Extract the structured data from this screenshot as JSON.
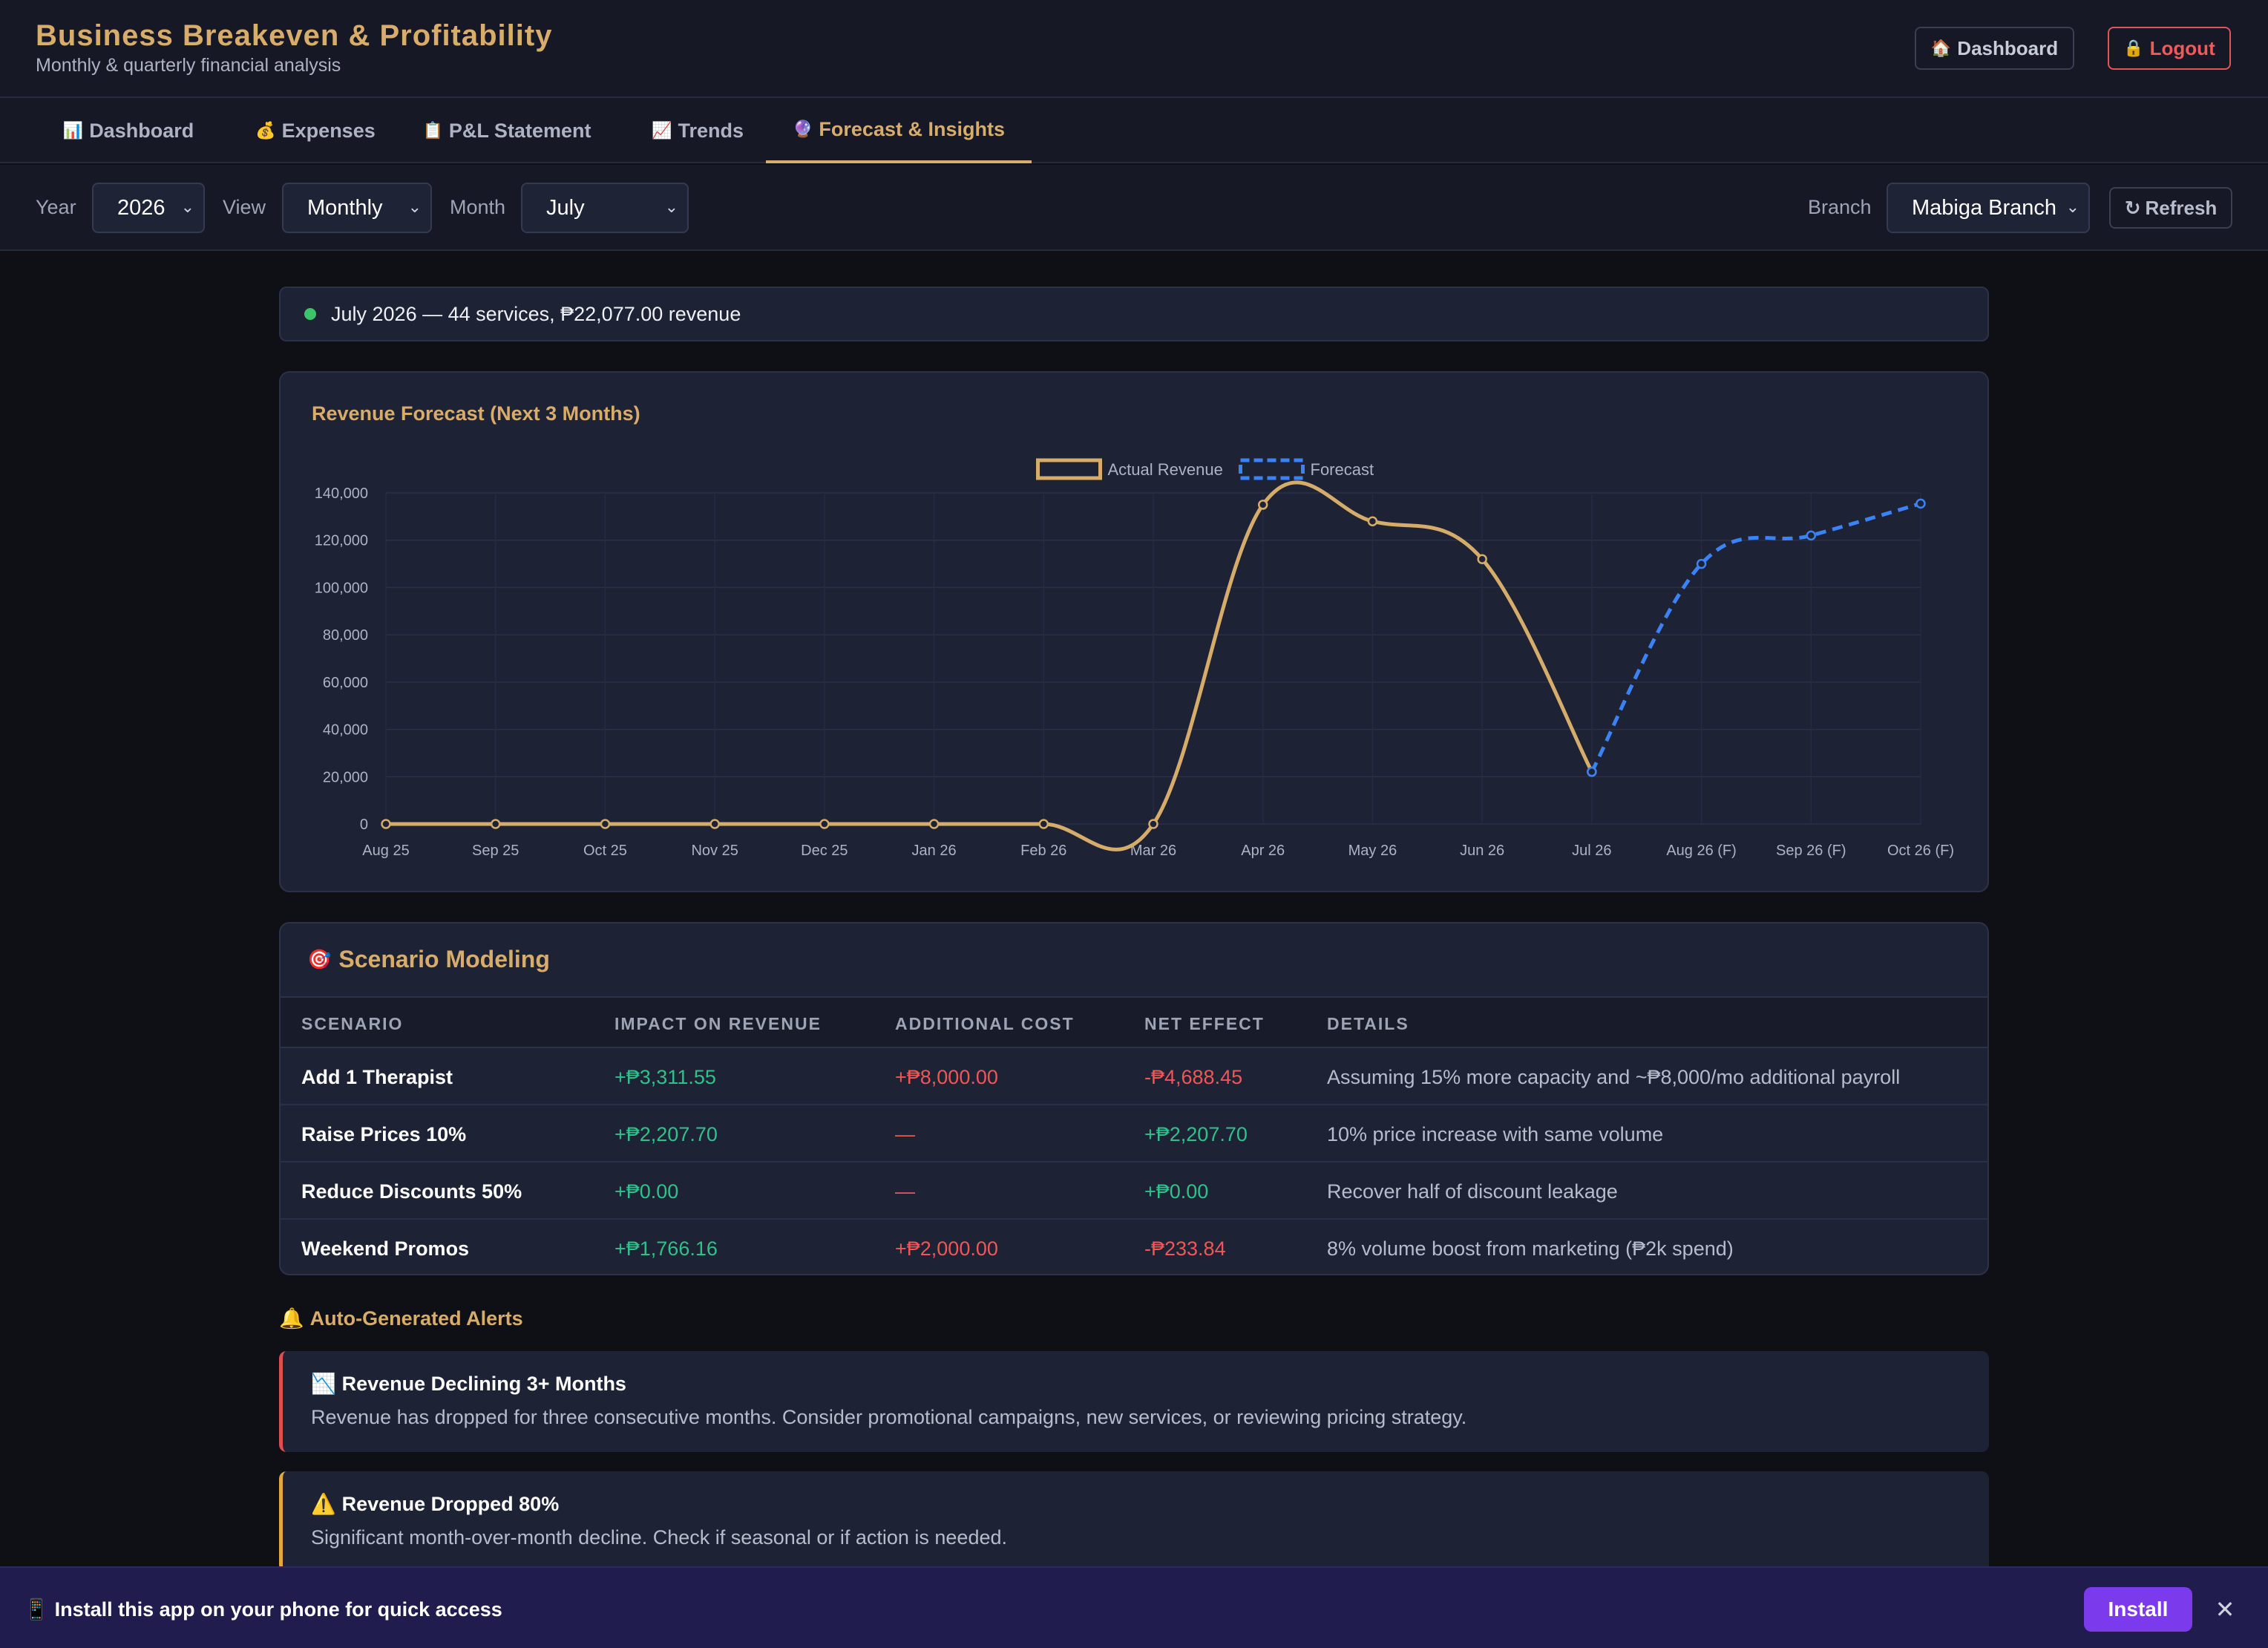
{
  "header": {
    "title": "Business Breakeven & Profitability",
    "subtitle": "Monthly & quarterly financial analysis",
    "dashboard_btn": {
      "icon": "🏠",
      "label": "Dashboard"
    },
    "logout_btn": {
      "icon": "🔒",
      "label": "Logout"
    }
  },
  "tabs": [
    {
      "icon": "📊",
      "label": "Dashboard"
    },
    {
      "icon": "💰",
      "label": "Expenses"
    },
    {
      "icon": "📋",
      "label": "P&L Statement"
    },
    {
      "icon": "📈",
      "label": "Trends"
    },
    {
      "icon": "🔮",
      "label": "Forecast & Insights",
      "active": true
    }
  ],
  "filters": {
    "year_label": "Year",
    "year_value": "2026",
    "view_label": "View",
    "view_value": "Monthly",
    "month_label": "Month",
    "month_value": "July",
    "branch_label": "Branch",
    "branch_value": "Mabiga Branch",
    "refresh": {
      "icon": "↻",
      "label": "Refresh"
    }
  },
  "status": {
    "text": "July 2026 — 44 services, ₱22,077.00 revenue",
    "color": "#3cc46a"
  },
  "chart_card": {
    "title": "Revenue Forecast (Next 3 Months)"
  },
  "chart_data": {
    "type": "line",
    "title": "Revenue Forecast (Next 3 Months)",
    "categories": [
      "Aug 25",
      "Sep 25",
      "Oct 25",
      "Nov 25",
      "Dec 25",
      "Jan 26",
      "Feb 26",
      "Mar 26",
      "Apr 26",
      "May 26",
      "Jun 26",
      "Jul 26",
      "Aug 26 (F)",
      "Sep 26 (F)",
      "Oct 26 (F)"
    ],
    "series": [
      {
        "name": "Actual Revenue",
        "color": "#d5ac6a",
        "dashed": false,
        "values": [
          0,
          0,
          0,
          0,
          0,
          0,
          0,
          0,
          135000,
          128000,
          112000,
          22077,
          null,
          null,
          null
        ]
      },
      {
        "name": "Forecast",
        "color": "#3b82f6",
        "dashed": true,
        "values": [
          null,
          null,
          null,
          null,
          null,
          null,
          null,
          null,
          null,
          null,
          null,
          22077,
          110000,
          122000,
          135500
        ]
      }
    ],
    "ylim": [
      0,
      140000
    ],
    "yticks": [
      0,
      20000,
      40000,
      60000,
      80000,
      100000,
      120000,
      140000
    ],
    "ytick_labels": [
      "0",
      "20,000",
      "40,000",
      "60,000",
      "80,000",
      "100,000",
      "120,000",
      "140,000"
    ],
    "grid": true,
    "legend_position": "top-center"
  },
  "scenarios": {
    "title": "Scenario Modeling",
    "icon": "🎯",
    "headers": [
      "SCENARIO",
      "IMPACT ON REVENUE",
      "ADDITIONAL COST",
      "NET EFFECT",
      "DETAILS"
    ],
    "rows": [
      {
        "name": "Add 1 Therapist",
        "impact": "+₱3,311.55",
        "cost": "+₱8,000.00",
        "net": "-₱4,688.45",
        "net_positive": false,
        "cost_positive": false,
        "details": "Assuming 15% more capacity and ~₱8,000/mo additional payroll"
      },
      {
        "name": "Raise Prices 10%",
        "impact": "+₱2,207.70",
        "cost": "—",
        "net": "+₱2,207.70",
        "net_positive": true,
        "cost_positive": false,
        "details": "10% price increase with same volume"
      },
      {
        "name": "Reduce Discounts 50%",
        "impact": "+₱0.00",
        "cost": "—",
        "net": "+₱0.00",
        "net_positive": true,
        "cost_positive": false,
        "details": "Recover half of discount leakage"
      },
      {
        "name": "Weekend Promos",
        "impact": "+₱1,766.16",
        "cost": "+₱2,000.00",
        "net": "-₱233.84",
        "net_positive": false,
        "cost_positive": false,
        "details": "8% volume boost from marketing (₱2k spend)"
      }
    ]
  },
  "alerts": {
    "title": "Auto-Generated Alerts",
    "icon": "🔔",
    "items": [
      {
        "icon": "📉",
        "title": "Revenue Declining 3+ Months",
        "body": "Revenue has dropped for three consecutive months. Consider promotional campaigns, new services, or reviewing pricing strategy.",
        "color": "#e04e4e"
      },
      {
        "icon": "⚠️",
        "title": "Revenue Dropped 80%",
        "body": "Significant month-over-month decline. Check if seasonal or if action is needed.",
        "color": "#e0a93a"
      }
    ]
  },
  "install": {
    "icon": "📱",
    "text": "Install this app on your phone for quick access",
    "button": "Install",
    "close": "✕"
  }
}
